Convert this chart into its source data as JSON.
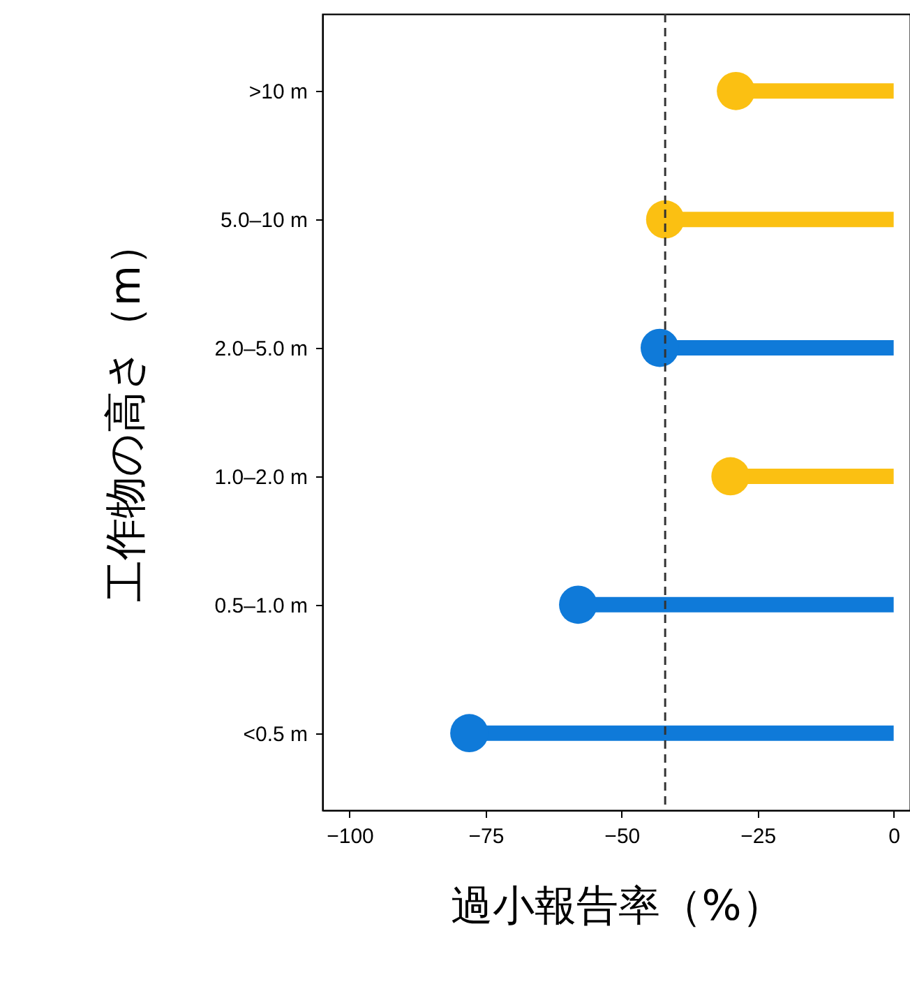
{
  "chart_data": {
    "type": "lollipop",
    "orientation": "horizontal",
    "xlabel": "過小報告率（%）",
    "ylabel": "工作物の高さ（m）",
    "categories": [
      ">10 m",
      "5.0–10 m",
      "2.0–5.0 m",
      "1.0–2.0 m",
      "0.5–1.0 m",
      "<0.5 m"
    ],
    "values": [
      -29,
      -42,
      -43,
      -30,
      -58,
      -78
    ],
    "colors": [
      "#fbc012",
      "#fbc012",
      "#0f7ad9",
      "#fbc012",
      "#0f7ad9",
      "#0f7ad9"
    ],
    "xlim": [
      -105,
      3
    ],
    "xticks": [
      -100,
      -75,
      -50,
      -25,
      0
    ],
    "ref_lines": [
      {
        "axis": "x",
        "value": -42,
        "line_style": "dashed",
        "color": "#333333"
      }
    ],
    "grid": false
  }
}
